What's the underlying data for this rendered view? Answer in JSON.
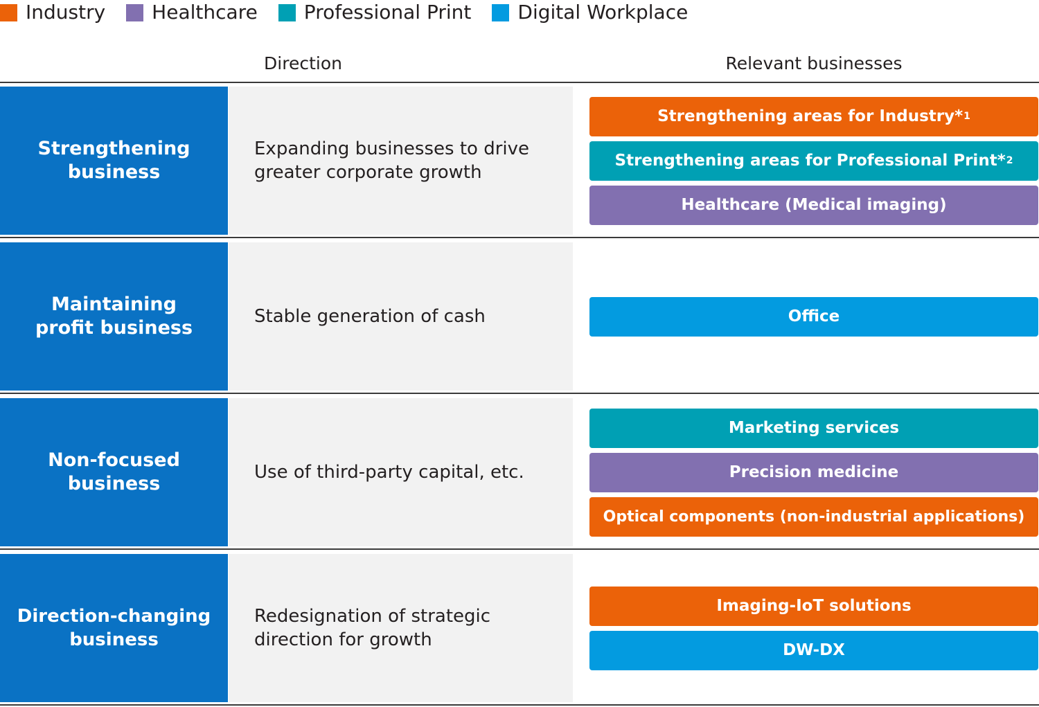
{
  "legend": [
    {
      "label": "Industry",
      "color": "#eb6209"
    },
    {
      "label": "Healthcare",
      "color": "#8270b0"
    },
    {
      "label": "Professional Print",
      "color": "#00a0b4"
    },
    {
      "label": "Digital Workplace",
      "color": "#039be0"
    }
  ],
  "header": {
    "direction": "Direction",
    "relevant": "Relevant businesses"
  },
  "rows": [
    {
      "category": "Strengthening\nbusiness",
      "direction": "Expanding businesses to drive\ngreater corporate growth",
      "businesses": [
        {
          "label": "Strengthening areas for Industry*",
          "note": "1",
          "segment": "industry"
        },
        {
          "label": "Strengthening areas for Professional Print*",
          "note": "2",
          "segment": "print"
        },
        {
          "label": "Healthcare (Medical imaging)",
          "segment": "healthcare"
        }
      ]
    },
    {
      "category": "Maintaining\nprofit business",
      "direction": "Stable generation of cash",
      "businesses": [
        {
          "label": "Office",
          "segment": "digital"
        }
      ]
    },
    {
      "category": "Non-focused\nbusiness",
      "direction": "Use of third-party capital, etc.",
      "businesses": [
        {
          "label": "Marketing services",
          "segment": "print"
        },
        {
          "label": "Precision medicine",
          "segment": "healthcare"
        },
        {
          "label": "Optical components (non-industrial applications)",
          "segment": "industry"
        }
      ]
    },
    {
      "category": "Direction-changing\nbusiness",
      "direction": "Redesignation of strategic\ndirection for growth",
      "businesses": [
        {
          "label": "Imaging-IoT solutions",
          "segment": "industry"
        },
        {
          "label": "DW-DX",
          "segment": "digital"
        }
      ]
    }
  ]
}
